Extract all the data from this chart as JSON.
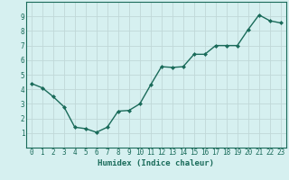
{
  "x": [
    0,
    1,
    2,
    3,
    4,
    5,
    6,
    7,
    8,
    9,
    10,
    11,
    12,
    13,
    14,
    15,
    16,
    17,
    18,
    19,
    20,
    21,
    22,
    23
  ],
  "y": [
    4.4,
    4.1,
    3.5,
    2.8,
    1.4,
    1.3,
    1.05,
    1.4,
    2.5,
    2.55,
    3.0,
    4.3,
    5.55,
    5.5,
    5.55,
    6.4,
    6.4,
    7.0,
    7.0,
    7.0,
    8.1,
    9.1,
    8.7,
    8.55
  ],
  "line_color": "#1a6b5a",
  "marker": "D",
  "marker_size": 2.0,
  "bg_color": "#d6f0f0",
  "grid_color": "#c0d8d8",
  "xlabel": "Humidex (Indice chaleur)",
  "ylabel": "",
  "xlim": [
    -0.5,
    23.5
  ],
  "ylim": [
    0,
    10
  ],
  "yticks": [
    1,
    2,
    3,
    4,
    5,
    6,
    7,
    8,
    9
  ],
  "xticks": [
    0,
    1,
    2,
    3,
    4,
    5,
    6,
    7,
    8,
    9,
    10,
    11,
    12,
    13,
    14,
    15,
    16,
    17,
    18,
    19,
    20,
    21,
    22,
    23
  ],
  "tick_fontsize": 5.5,
  "xlabel_fontsize": 6.5,
  "linewidth": 1.0,
  "title": ""
}
